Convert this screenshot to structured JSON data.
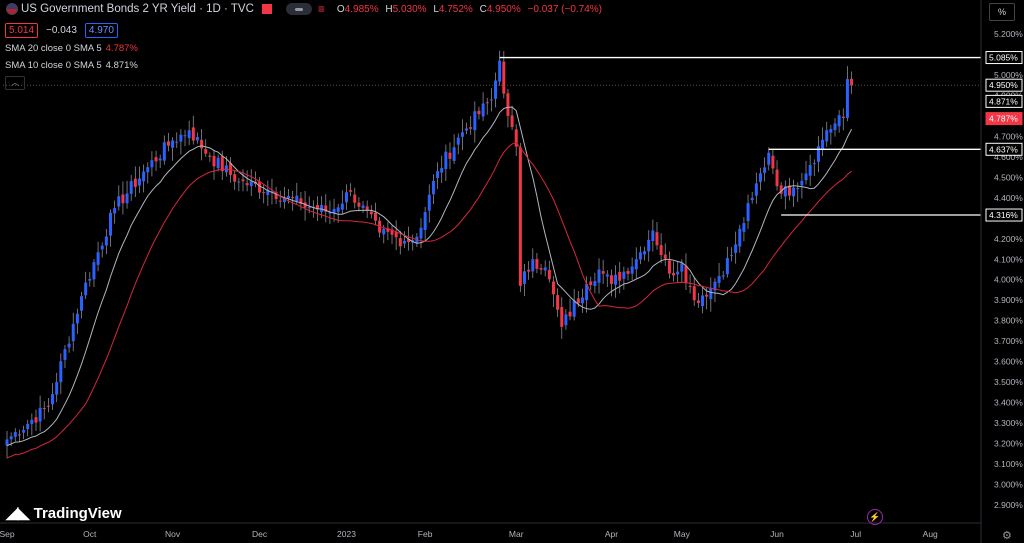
{
  "header": {
    "title": "US Government Bonds 2 YR Yield · 1D · TVC",
    "ohlc": [
      {
        "k": "O",
        "v": "4.985%"
      },
      {
        "k": "H",
        "v": "5.030%"
      },
      {
        "k": "L",
        "v": "4.752%"
      },
      {
        "k": "C",
        "v": "4.950%"
      },
      {
        "k": "",
        "v": "−0.037 (−0.74%)"
      }
    ],
    "bid": "5.014",
    "spread": "−0.043",
    "ask": "4.970"
  },
  "indicators": [
    {
      "label": "SMA 20 close 0 SMA 5",
      "value": "4.787%",
      "color": "#f23645"
    },
    {
      "label": "SMA 10 close 0 SMA 5",
      "value": "4.871%",
      "color": "#d1d4dc"
    }
  ],
  "watermark": "TradingView",
  "unit_button": "%",
  "colors": {
    "up": "#2962ff",
    "down": "#f23645",
    "sma10": "#b2b5be",
    "sma20": "#d7263d",
    "bg": "#000000"
  },
  "chart_data": {
    "type": "candlestick",
    "y_axis_ticks": [
      "5.200%",
      "5.100%",
      "5.000%",
      "4.900%",
      "4.800%",
      "4.700%",
      "4.600%",
      "4.500%",
      "4.400%",
      "4.300%",
      "4.200%",
      "4.100%",
      "4.000%",
      "3.900%",
      "3.800%",
      "3.700%",
      "3.600%",
      "3.500%",
      "3.400%",
      "3.300%",
      "3.200%",
      "3.100%",
      "3.000%",
      "2.900%"
    ],
    "ylim": [
      2.84,
      5.25
    ],
    "x_axis_labels": [
      "Sep",
      "Oct",
      "Nov",
      "Dec",
      "2023",
      "Feb",
      "Mar",
      "Apr",
      "May",
      "Jun",
      "Jul",
      "Aug"
    ],
    "x_labels_at_bar": [
      0,
      20,
      40,
      61,
      82,
      101,
      123,
      146,
      163,
      186,
      205,
      223
    ],
    "n_bars": 205,
    "anchors": [
      [
        0,
        3.22
      ],
      [
        10,
        3.38
      ],
      [
        18,
        3.92
      ],
      [
        26,
        4.35
      ],
      [
        34,
        4.55
      ],
      [
        40,
        4.68
      ],
      [
        44,
        4.73
      ],
      [
        49,
        4.6
      ],
      [
        56,
        4.48
      ],
      [
        63,
        4.44
      ],
      [
        71,
        4.37
      ],
      [
        78,
        4.33
      ],
      [
        83,
        4.43
      ],
      [
        90,
        4.23
      ],
      [
        96,
        4.19
      ],
      [
        99,
        4.21
      ],
      [
        104,
        4.53
      ],
      [
        110,
        4.72
      ],
      [
        117,
        4.88
      ],
      [
        119,
        5.07
      ],
      [
        121,
        4.8
      ],
      [
        123,
        4.65
      ],
      [
        124,
        3.97
      ],
      [
        127,
        4.1
      ],
      [
        130,
        4.06
      ],
      [
        134,
        3.77
      ],
      [
        140,
        3.98
      ],
      [
        143,
        4.05
      ],
      [
        146,
        3.98
      ],
      [
        152,
        4.1
      ],
      [
        156,
        4.24
      ],
      [
        160,
        4.03
      ],
      [
        163,
        4.08
      ],
      [
        166,
        3.9
      ],
      [
        170,
        3.96
      ],
      [
        175,
        4.12
      ],
      [
        180,
        4.4
      ],
      [
        184,
        4.62
      ],
      [
        187,
        4.42
      ],
      [
        190,
        4.45
      ],
      [
        194,
        4.56
      ],
      [
        198,
        4.73
      ],
      [
        202,
        4.79
      ],
      [
        203,
        4.98
      ],
      [
        204,
        4.95
      ]
    ],
    "sma_10_last": 4.871,
    "sma_20_last": 4.787,
    "price_lines": [
      {
        "value": 5.085,
        "label": "5.085%",
        "from_bar": 119
      },
      {
        "value": 4.637,
        "label": "4.637%",
        "from_bar": 184
      },
      {
        "value": 4.316,
        "label": "4.316%",
        "from_bar": 187
      }
    ],
    "last_price": {
      "value": 4.95,
      "label": "4.950%"
    },
    "sma_labels": [
      {
        "value": 4.871,
        "label": "4.871%",
        "style": "light"
      },
      {
        "value": 4.787,
        "label": "4.787%",
        "style": "red"
      }
    ]
  }
}
